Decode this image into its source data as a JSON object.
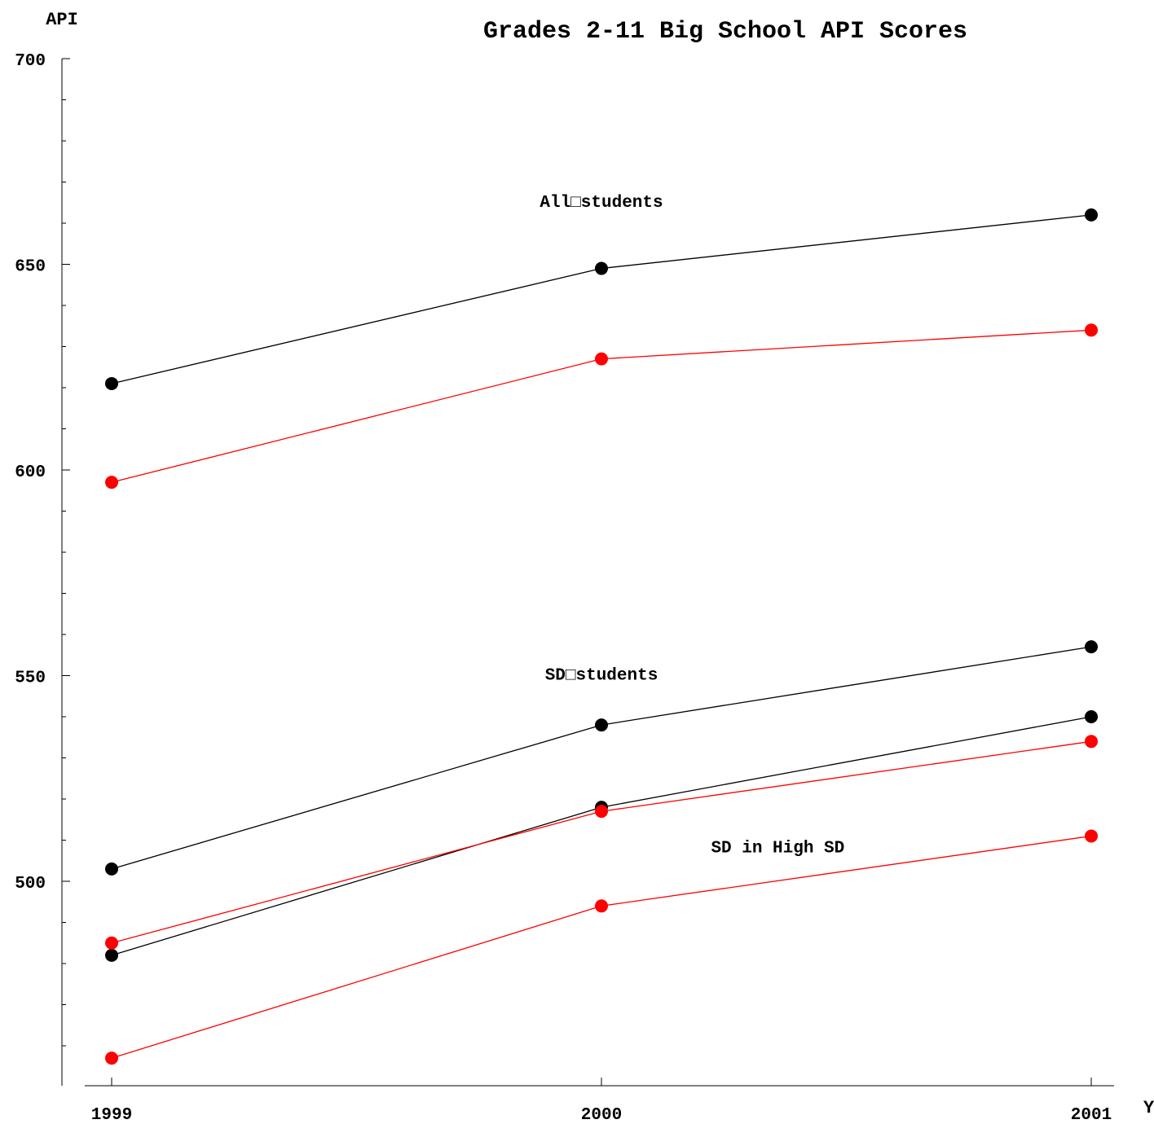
{
  "chart_data": {
    "type": "line",
    "title": "Grades 2-11 Big School API Scores",
    "ylabel": "API",
    "xlabel": "Y",
    "x": [
      "1999",
      "2000",
      "2001"
    ],
    "ylim": [
      450,
      700
    ],
    "yticks": [
      500,
      550,
      600,
      650,
      700
    ],
    "grid": false,
    "series": [
      {
        "color": "#000000",
        "values": [
          621,
          649,
          662
        ]
      },
      {
        "color": "#ff0000",
        "values": [
          597,
          627,
          634
        ]
      },
      {
        "color": "#000000",
        "values": [
          503,
          538,
          557
        ]
      },
      {
        "color": "#000000",
        "values": [
          482,
          518,
          540
        ]
      },
      {
        "color": "#ff0000",
        "values": [
          485,
          517,
          534
        ]
      },
      {
        "color": "#ff0000",
        "values": [
          457,
          494,
          511
        ]
      }
    ],
    "annotations": [
      {
        "text": "All□students",
        "x": "2000",
        "y": 664
      },
      {
        "text": "SD□students",
        "x": "2000",
        "y": 549
      },
      {
        "text": "SD in High SD",
        "x": "2000.36",
        "y": 507
      }
    ]
  }
}
